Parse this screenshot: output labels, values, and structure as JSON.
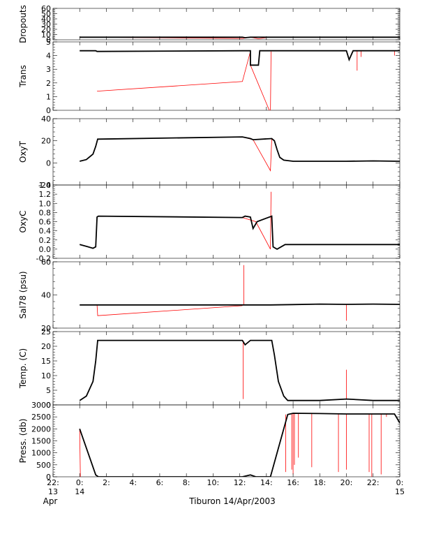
{
  "figure_title": "Tiburon 14/Apr/2003",
  "colors": {
    "data": "#000000",
    "interp": "#ff0000",
    "axis": "#000000"
  },
  "x_axis": {
    "range": [
      22,
      48
    ],
    "ticks": [
      {
        "v": 22,
        "label": "22:",
        "sub": "13"
      },
      {
        "v": 24,
        "label": "0:",
        "sub": "14"
      },
      {
        "v": 26,
        "label": "2:",
        "sub": ""
      },
      {
        "v": 28,
        "label": "4:",
        "sub": ""
      },
      {
        "v": 30,
        "label": "6:",
        "sub": ""
      },
      {
        "v": 32,
        "label": "8:",
        "sub": ""
      },
      {
        "v": 34,
        "label": "10:",
        "sub": ""
      },
      {
        "v": 36,
        "label": "12:",
        "sub": ""
      },
      {
        "v": 38,
        "label": "14:",
        "sub": ""
      },
      {
        "v": 40,
        "label": "16:",
        "sub": ""
      },
      {
        "v": 42,
        "label": "18:",
        "sub": ""
      },
      {
        "v": 44,
        "label": "20:",
        "sub": ""
      },
      {
        "v": 46,
        "label": "22:",
        "sub": ""
      },
      {
        "v": 48,
        "label": "0:",
        "sub": "15"
      }
    ],
    "month_label": "Apr"
  },
  "chart_data": [
    {
      "type": "line",
      "ylabel": "Dropouts",
      "ylim": [
        0,
        60
      ],
      "yticks": [
        0,
        10,
        20,
        30,
        40,
        50,
        60
      ],
      "data": [
        [
          24,
          5
        ],
        [
          25.3,
          5
        ],
        [
          36.2,
          5
        ],
        [
          36.4,
          4
        ],
        [
          36.8,
          5
        ],
        [
          37.4,
          5
        ],
        [
          38.0,
          5
        ],
        [
          38.5,
          5
        ],
        [
          40,
          5
        ],
        [
          44,
          5
        ],
        [
          48,
          5
        ]
      ],
      "interp": [
        [
          25.3,
          5
        ],
        [
          36.2,
          2.5
        ],
        [
          36.8,
          5
        ],
        [
          37.4,
          2
        ],
        [
          38.0,
          4
        ]
      ]
    },
    {
      "type": "line",
      "ylabel": "Trans",
      "ylim": [
        0,
        5
      ],
      "yticks": [
        0,
        1,
        2,
        3,
        4,
        5
      ],
      "data": [
        [
          24,
          4.35
        ],
        [
          25.2,
          4.35
        ],
        [
          25.3,
          4.3
        ],
        [
          36.2,
          4.35
        ],
        [
          36.8,
          4.35
        ],
        [
          36.8,
          3.3
        ],
        [
          37.4,
          3.3
        ],
        [
          37.5,
          4.35
        ],
        [
          40,
          4.35
        ],
        [
          42,
          4.35
        ],
        [
          44,
          4.35
        ],
        [
          44.2,
          3.7
        ],
        [
          44.5,
          4.35
        ],
        [
          46,
          4.35
        ],
        [
          48,
          4.35
        ]
      ],
      "interp": [
        [
          25.3,
          1.4
        ],
        [
          36.2,
          2.1
        ],
        [
          36.8,
          4.3
        ],
        [
          36.8,
          3.3
        ],
        [
          38.3,
          -0.2
        ],
        [
          38.35,
          4.3
        ]
      ],
      "spikes": [
        [
          44.8,
          2.9
        ],
        [
          45.1,
          3.9
        ],
        [
          47.6,
          4.0
        ]
      ]
    },
    {
      "type": "line",
      "ylabel": "OxyT",
      "ylim": [
        -20,
        40
      ],
      "yticks": [
        -20,
        0,
        20,
        40
      ],
      "data": [
        [
          24,
          1.5
        ],
        [
          24.5,
          3
        ],
        [
          25.0,
          8
        ],
        [
          25.2,
          15
        ],
        [
          25.35,
          21.5
        ],
        [
          36.2,
          23.5
        ],
        [
          36.8,
          22
        ],
        [
          37.0,
          21
        ],
        [
          38.4,
          22
        ],
        [
          38.6,
          20
        ],
        [
          38.8,
          12
        ],
        [
          39.0,
          5
        ],
        [
          39.3,
          2.5
        ],
        [
          40,
          1.5
        ],
        [
          44,
          1.5
        ],
        [
          46,
          1.8
        ],
        [
          48,
          1.5
        ]
      ],
      "interp": [
        [
          25.35,
          21.5
        ],
        [
          36.2,
          23.5
        ],
        [
          37.0,
          21
        ],
        [
          38.3,
          -7
        ],
        [
          38.4,
          22
        ]
      ]
    },
    {
      "type": "line",
      "ylabel": "OxyC",
      "ylim": [
        -0.2,
        1.4
      ],
      "yticks": [
        -0.2,
        0.0,
        0.2,
        0.4,
        0.6,
        0.8,
        1.0,
        1.2,
        1.4
      ],
      "data": [
        [
          24,
          0.1
        ],
        [
          24.5,
          0.06
        ],
        [
          25.0,
          0.02
        ],
        [
          25.2,
          0.05
        ],
        [
          25.3,
          0.7
        ],
        [
          25.4,
          0.72
        ],
        [
          36.2,
          0.69
        ],
        [
          36.4,
          0.72
        ],
        [
          36.8,
          0.7
        ],
        [
          37.0,
          0.45
        ],
        [
          37.3,
          0.6
        ],
        [
          38.4,
          0.72
        ],
        [
          38.5,
          0.05
        ],
        [
          38.8,
          0.0
        ],
        [
          39.4,
          0.1
        ],
        [
          48,
          0.1
        ]
      ],
      "interp": [
        [
          25.4,
          0.72
        ],
        [
          36.2,
          0.69
        ],
        [
          37.2,
          0.6
        ],
        [
          38.3,
          0.0
        ],
        [
          38.35,
          1.25
        ]
      ]
    },
    {
      "type": "line",
      "ylabel": "Sal78 (psu)",
      "ylim": [
        20,
        60
      ],
      "yticks": [
        20,
        40,
        60
      ],
      "data": [
        [
          24,
          34
        ],
        [
          25.3,
          34
        ],
        [
          36.2,
          34
        ],
        [
          36.8,
          34
        ],
        [
          38.3,
          34
        ],
        [
          40,
          34.2
        ],
        [
          42,
          34.5
        ],
        [
          44,
          34.3
        ],
        [
          46,
          34.5
        ],
        [
          48,
          34.3
        ]
      ],
      "interp": [
        [
          25.3,
          34
        ],
        [
          25.35,
          27.5
        ],
        [
          36.2,
          33.5
        ]
      ],
      "spikes": [
        [
          36.3,
          58
        ],
        [
          44.0,
          24.5
        ]
      ]
    },
    {
      "type": "line",
      "ylabel": "Temp. (C)",
      "ylim": [
        0,
        25
      ],
      "yticks": [
        0,
        5,
        10,
        15,
        20,
        25
      ],
      "data": [
        [
          24,
          1.5
        ],
        [
          24.5,
          3
        ],
        [
          25.0,
          8
        ],
        [
          25.2,
          15
        ],
        [
          25.35,
          22
        ],
        [
          36.2,
          22
        ],
        [
          36.4,
          20.5
        ],
        [
          36.8,
          22
        ],
        [
          38.4,
          22
        ],
        [
          38.6,
          17
        ],
        [
          38.9,
          8
        ],
        [
          39.3,
          3
        ],
        [
          39.6,
          1.5
        ],
        [
          42,
          1.5
        ],
        [
          44,
          2
        ],
        [
          46,
          1.5
        ],
        [
          48,
          1.5
        ]
      ],
      "interp": [
        [
          25.35,
          22
        ],
        [
          36.2,
          22
        ]
      ],
      "spikes": [
        [
          36.25,
          2
        ],
        [
          44.0,
          12
        ]
      ]
    },
    {
      "type": "line",
      "ylabel": "Press. (db)",
      "ylim": [
        0,
        3000
      ],
      "yticks": [
        0,
        500,
        1000,
        1500,
        2000,
        2500,
        3000
      ],
      "data": [
        [
          24,
          2000
        ],
        [
          25.2,
          80
        ],
        [
          25.4,
          0
        ],
        [
          36.2,
          0
        ],
        [
          36.8,
          80
        ],
        [
          37.2,
          0
        ],
        [
          38.3,
          0
        ],
        [
          39.6,
          2600
        ],
        [
          40,
          2650
        ],
        [
          42,
          2640
        ],
        [
          44,
          2620
        ],
        [
          46,
          2620
        ],
        [
          47.6,
          2620
        ],
        [
          48,
          2250
        ]
      ],
      "interp": [
        [
          24,
          2000
        ],
        [
          24.05,
          0
        ]
      ],
      "spikes": [
        [
          39.45,
          200
        ],
        [
          39.9,
          300
        ],
        [
          40.0,
          100
        ],
        [
          40.1,
          500
        ],
        [
          40.4,
          800
        ],
        [
          41.4,
          400
        ],
        [
          43.4,
          200
        ],
        [
          44.0,
          300
        ],
        [
          45.7,
          200
        ],
        [
          45.9,
          0
        ],
        [
          46.6,
          100
        ],
        [
          47.0,
          2500
        ]
      ]
    }
  ]
}
